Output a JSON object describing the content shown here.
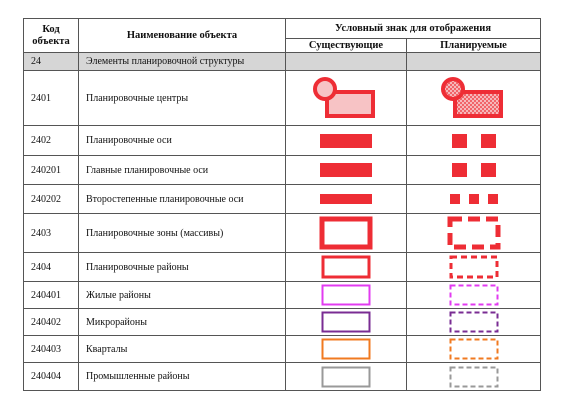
{
  "header": {
    "code_label": "Код объекта",
    "name_label": "Наименование объекта",
    "symbol_label": "Условный знак для отображения",
    "existing_label": "Существующие",
    "planned_label": "Планируемые"
  },
  "group": {
    "code": "24",
    "name": "Элементы планировочной структуры"
  },
  "rows": [
    {
      "code": "2401",
      "name": "Планировочные центры"
    },
    {
      "code": "2402",
      "name": "Планировочные оси"
    },
    {
      "code": "240201",
      "name": "Главные планировочные оси"
    },
    {
      "code": "240202",
      "name": "Второстепенные планировочные оси"
    },
    {
      "code": "2403",
      "name": "Планировочные зоны (массивы)"
    },
    {
      "code": "2404",
      "name": "Планировочные районы"
    },
    {
      "code": "240401",
      "name": "Жилые районы"
    },
    {
      "code": "240402",
      "name": "Микрорайоны"
    },
    {
      "code": "240403",
      "name": "Кварталы"
    },
    {
      "code": "240404",
      "name": "Промышленные районы"
    }
  ],
  "colors": {
    "red": "#ee2d35",
    "light_red": "#f7c3c5",
    "magenta": "#e23bf0",
    "purple": "#7a2c93",
    "orange": "#f07a20",
    "gray": "#999999"
  }
}
